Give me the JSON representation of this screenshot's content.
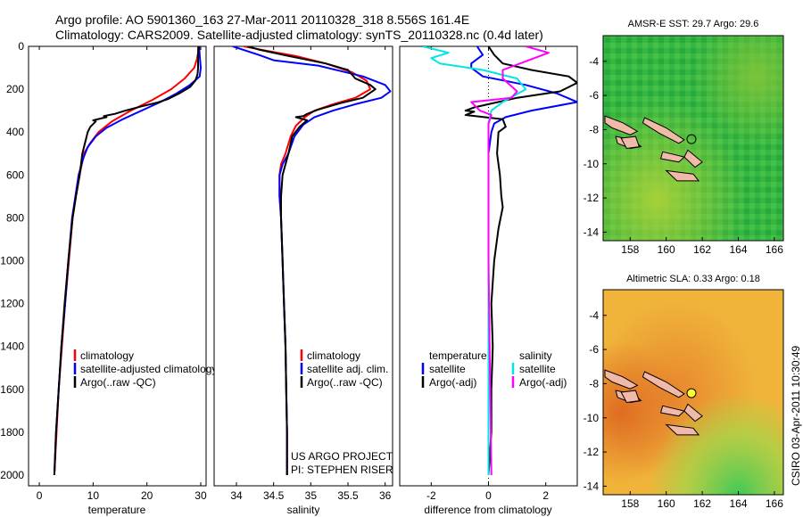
{
  "header": {
    "line1": "Argo profile: AO 5901360_163 27-Mar-2011 20110328_318 8.556S 161.4E",
    "line2": "Climatology: CARS2009. Satellite-adjusted climatology: synTS_20110328.nc (0.4d later)"
  },
  "footer": {
    "project": "US ARGO PROJECT",
    "pi": "PI: STEPHEN RISER",
    "stamp": "CSIRO 03-Apr-2011 10:30:49"
  },
  "depth_axis": {
    "range": [
      0,
      2050
    ],
    "ticks": [
      "0",
      "200",
      "400",
      "600",
      "800",
      "1000",
      "1200",
      "1400",
      "1600",
      "1800",
      "2000"
    ]
  },
  "chart_data": [
    {
      "type": "line",
      "id": "temperature",
      "xlabel": "temperature",
      "xlim": [
        -2,
        31
      ],
      "xticks": [
        "0",
        "10",
        "20",
        "30"
      ],
      "legend": [
        "climatology",
        "satellite-adjusted climatology",
        "Argo(..raw -QC)"
      ],
      "series": [
        {
          "name": "climatology",
          "color": "#ff0000",
          "points": [
            [
              29.5,
              0
            ],
            [
              29.5,
              30
            ],
            [
              29.3,
              60
            ],
            [
              28.8,
              100
            ],
            [
              27,
              150
            ],
            [
              24.5,
              200
            ],
            [
              21,
              250
            ],
            [
              17,
              300
            ],
            [
              13.5,
              350
            ],
            [
              11,
              400
            ],
            [
              9.5,
              450
            ],
            [
              8.3,
              500
            ],
            [
              7.5,
              600
            ],
            [
              6.8,
              700
            ],
            [
              6.2,
              800
            ],
            [
              5.5,
              1000
            ],
            [
              4.8,
              1200
            ],
            [
              4.2,
              1400
            ],
            [
              3.6,
              1600
            ],
            [
              3.2,
              1800
            ],
            [
              2.8,
              2000
            ]
          ]
        },
        {
          "name": "satellite-adjusted climatology",
          "color": "#0000ff",
          "points": [
            [
              29.7,
              0
            ],
            [
              29.8,
              40
            ],
            [
              30,
              100
            ],
            [
              29.8,
              140
            ],
            [
              28,
              180
            ],
            [
              25.5,
              220
            ],
            [
              22.5,
              260
            ],
            [
              19,
              300
            ],
            [
              15.5,
              340
            ],
            [
              12.5,
              380
            ],
            [
              10.5,
              420
            ],
            [
              9,
              470
            ],
            [
              8.2,
              520
            ],
            [
              7.3,
              600
            ],
            [
              6.7,
              700
            ],
            [
              6.1,
              800
            ],
            [
              5.4,
              1000
            ],
            [
              4.8,
              1200
            ],
            [
              4.1,
              1400
            ],
            [
              3.6,
              1600
            ],
            [
              3.1,
              1800
            ],
            [
              2.8,
              2000
            ]
          ]
        },
        {
          "name": "Argo(..raw -QC)",
          "color": "#000000",
          "points": [
            [
              29.6,
              0
            ],
            [
              29.5,
              40
            ],
            [
              29.5,
              100
            ],
            [
              29.4,
              130
            ],
            [
              29,
              160
            ],
            [
              28,
              190
            ],
            [
              26,
              220
            ],
            [
              24,
              245
            ],
            [
              22,
              262
            ],
            [
              19,
              280
            ],
            [
              16,
              300
            ],
            [
              14,
              315
            ],
            [
              12,
              325
            ],
            [
              12.5,
              330
            ],
            [
              10,
              345
            ],
            [
              10.5,
              350
            ],
            [
              9.5,
              375
            ],
            [
              9,
              400
            ],
            [
              8.5,
              450
            ],
            [
              8,
              500
            ],
            [
              7.5,
              600
            ],
            [
              6.8,
              700
            ],
            [
              6.2,
              800
            ],
            [
              5.4,
              1000
            ],
            [
              4.7,
              1200
            ],
            [
              4.1,
              1400
            ],
            [
              3.6,
              1600
            ],
            [
              3.1,
              1800
            ],
            [
              2.8,
              2000
            ]
          ]
        }
      ]
    },
    {
      "type": "line",
      "id": "salinity",
      "xlabel": "salinity",
      "xlim": [
        33.7,
        36.1
      ],
      "xticks": [
        "34",
        "34.5",
        "35",
        "35.5",
        "36"
      ],
      "legend": [
        "climatology",
        "satellite adj. clim.",
        "Argo(..raw -QC)"
      ],
      "series": [
        {
          "name": "climatology",
          "color": "#ff0000",
          "points": [
            [
              34.1,
              0
            ],
            [
              34.4,
              20
            ],
            [
              34.8,
              45
            ],
            [
              35.2,
              80
            ],
            [
              35.55,
              120
            ],
            [
              35.75,
              160
            ],
            [
              35.8,
              200
            ],
            [
              35.6,
              240
            ],
            [
              35.3,
              270
            ],
            [
              35.05,
              300
            ],
            [
              34.92,
              330
            ],
            [
              34.8,
              370
            ],
            [
              34.73,
              420
            ],
            [
              34.66,
              500
            ],
            [
              34.6,
              550
            ],
            [
              34.58,
              600
            ],
            [
              34.58,
              700
            ],
            [
              34.6,
              800
            ],
            [
              34.62,
              1000
            ],
            [
              34.64,
              1200
            ],
            [
              34.66,
              1400
            ],
            [
              34.67,
              1600
            ],
            [
              34.68,
              1800
            ],
            [
              34.68,
              2000
            ]
          ]
        },
        {
          "name": "satellite adj. clim.",
          "color": "#0000ff",
          "points": [
            [
              33.95,
              0
            ],
            [
              34.3,
              40
            ],
            [
              34.5,
              65
            ],
            [
              35.1,
              90
            ],
            [
              35.7,
              140
            ],
            [
              36.0,
              180
            ],
            [
              36.07,
              210
            ],
            [
              35.95,
              240
            ],
            [
              35.6,
              270
            ],
            [
              35.3,
              300
            ],
            [
              35.05,
              330
            ],
            [
              34.9,
              365
            ],
            [
              34.78,
              420
            ],
            [
              34.7,
              500
            ],
            [
              34.62,
              550
            ],
            [
              34.58,
              600
            ],
            [
              34.58,
              700
            ],
            [
              34.6,
              800
            ],
            [
              34.62,
              1000
            ],
            [
              34.64,
              1200
            ],
            [
              34.66,
              1400
            ],
            [
              34.67,
              1600
            ],
            [
              34.68,
              1800
            ],
            [
              34.68,
              2000
            ]
          ]
        },
        {
          "name": "Argo(..raw -QC)",
          "color": "#000000",
          "points": [
            [
              34.15,
              0
            ],
            [
              34.3,
              15
            ],
            [
              34.7,
              45
            ],
            [
              35.2,
              80
            ],
            [
              35.5,
              110
            ],
            [
              35.6,
              150
            ],
            [
              35.8,
              180
            ],
            [
              35.87,
              200
            ],
            [
              35.7,
              240
            ],
            [
              35.4,
              265
            ],
            [
              35.1,
              295
            ],
            [
              34.95,
              315
            ],
            [
              34.9,
              325
            ],
            [
              34.8,
              330
            ],
            [
              34.95,
              345
            ],
            [
              34.85,
              375
            ],
            [
              34.75,
              420
            ],
            [
              34.7,
              500
            ],
            [
              34.62,
              600
            ],
            [
              34.6,
              700
            ],
            [
              34.6,
              800
            ],
            [
              34.62,
              1000
            ],
            [
              34.64,
              1200
            ],
            [
              34.66,
              1400
            ],
            [
              34.67,
              1600
            ],
            [
              34.68,
              1800
            ],
            [
              34.68,
              2000
            ]
          ]
        }
      ]
    },
    {
      "type": "line",
      "id": "difference",
      "xlabel": "difference from climatology",
      "xlim": [
        -3.1,
        3.1
      ],
      "xticks": [
        "-2",
        "0",
        "2"
      ],
      "legend_groups": [
        "temperature",
        "salinity"
      ],
      "legend_left": [
        "satellite",
        "Argo(-adj)"
      ],
      "legend_right": [
        "satellite",
        "Argo(-adj)"
      ],
      "series": [
        {
          "name": "temperature satellite",
          "color": "#0000ff",
          "points": [
            [
              -0.4,
              0
            ],
            [
              -0.2,
              40
            ],
            [
              -0.6,
              80
            ],
            [
              -0.6,
              100
            ],
            [
              -0.2,
              140
            ],
            [
              1.3,
              180
            ],
            [
              2.4,
              220
            ],
            [
              3.1,
              260
            ],
            [
              1.5,
              300
            ],
            [
              0.6,
              330
            ],
            [
              0.2,
              360
            ],
            [
              0.1,
              400
            ],
            [
              0.0,
              500
            ],
            [
              0.0,
              700
            ],
            [
              0.0,
              1000
            ],
            [
              0.0,
              1500
            ],
            [
              0.0,
              2000
            ]
          ]
        },
        {
          "name": "temperature Argo(-adj)",
          "color": "#000000",
          "points": [
            [
              0.0,
              0
            ],
            [
              0.2,
              40
            ],
            [
              0.5,
              80
            ],
            [
              1.5,
              110
            ],
            [
              2.8,
              140
            ],
            [
              3.1,
              170
            ],
            [
              2.5,
              210
            ],
            [
              1.0,
              240
            ],
            [
              0.0,
              270
            ],
            [
              -0.5,
              285
            ],
            [
              -0.8,
              300
            ],
            [
              -0.5,
              305
            ],
            [
              -0.8,
              320
            ],
            [
              0.5,
              340
            ],
            [
              0.6,
              375
            ],
            [
              0.35,
              400
            ],
            [
              0.3,
              500
            ],
            [
              0.4,
              600
            ],
            [
              0.45,
              700
            ],
            [
              0.5,
              750
            ],
            [
              0.35,
              850
            ],
            [
              0.2,
              1000
            ],
            [
              0.1,
              1200
            ],
            [
              0.15,
              1400
            ],
            [
              0.1,
              1600
            ],
            [
              0.1,
              1800
            ],
            [
              0.05,
              1900
            ],
            [
              0.0,
              2000
            ]
          ]
        },
        {
          "name": "salinity satellite",
          "color": "#00e5e5",
          "points": [
            [
              -2.3,
              0
            ],
            [
              -1.4,
              30
            ],
            [
              -2.0,
              55
            ],
            [
              -1.7,
              80
            ],
            [
              -0.2,
              110
            ],
            [
              1.0,
              150
            ],
            [
              1.3,
              200
            ],
            [
              0.5,
              260
            ],
            [
              0.1,
              300
            ],
            [
              0.0,
              360
            ],
            [
              0.0,
              450
            ],
            [
              0.0,
              600
            ],
            [
              0.0,
              800
            ],
            [
              0.0,
              1200
            ],
            [
              0.0,
              1600
            ],
            [
              0.0,
              2000
            ]
          ]
        },
        {
          "name": "salinity Argo(-adj)",
          "color": "#ff00ff",
          "points": [
            [
              1.3,
              0
            ],
            [
              2.1,
              30
            ],
            [
              1.5,
              60
            ],
            [
              0.5,
              110
            ],
            [
              0.5,
              150
            ],
            [
              1.0,
              210
            ],
            [
              0.8,
              240
            ],
            [
              -0.6,
              260
            ],
            [
              -0.3,
              300
            ],
            [
              0.1,
              320
            ],
            [
              0.0,
              360
            ],
            [
              0.0,
              500
            ],
            [
              0.0,
              1000
            ],
            [
              0.05,
              1500
            ],
            [
              0.1,
              2000
            ]
          ]
        }
      ]
    },
    {
      "type": "heatmap",
      "id": "sst-map",
      "title": "AMSR-E SST: 29.7 Argo: 29.6",
      "xticks": [
        "158",
        "160",
        "162",
        "164",
        "166"
      ],
      "yticks": [
        "-4",
        "-6",
        "-8",
        "-10",
        "-12",
        "-14"
      ],
      "xlim": [
        156.5,
        166.5
      ],
      "ylim": [
        -14.5,
        -2.5
      ],
      "float_position": [
        161.4,
        -8.556
      ],
      "colors": {
        "base": "#33b842",
        "warm": "#9ccc33",
        "cool": "#1a9e3a"
      }
    },
    {
      "type": "heatmap",
      "id": "sla-map",
      "title": "Altimetric SLA: 0.33 Argo: 0.18",
      "xticks": [
        "158",
        "160",
        "162",
        "164",
        "166"
      ],
      "yticks": [
        "-4",
        "-6",
        "-8",
        "-10",
        "-12",
        "-14"
      ],
      "xlim": [
        156.5,
        166.5
      ],
      "ylim": [
        -14.5,
        -2.5
      ],
      "float_position": [
        161.4,
        -8.556
      ],
      "colors": {
        "base": "#f0b43a",
        "warm": "#e07a2a",
        "cool": "#4fcf5a"
      }
    }
  ]
}
